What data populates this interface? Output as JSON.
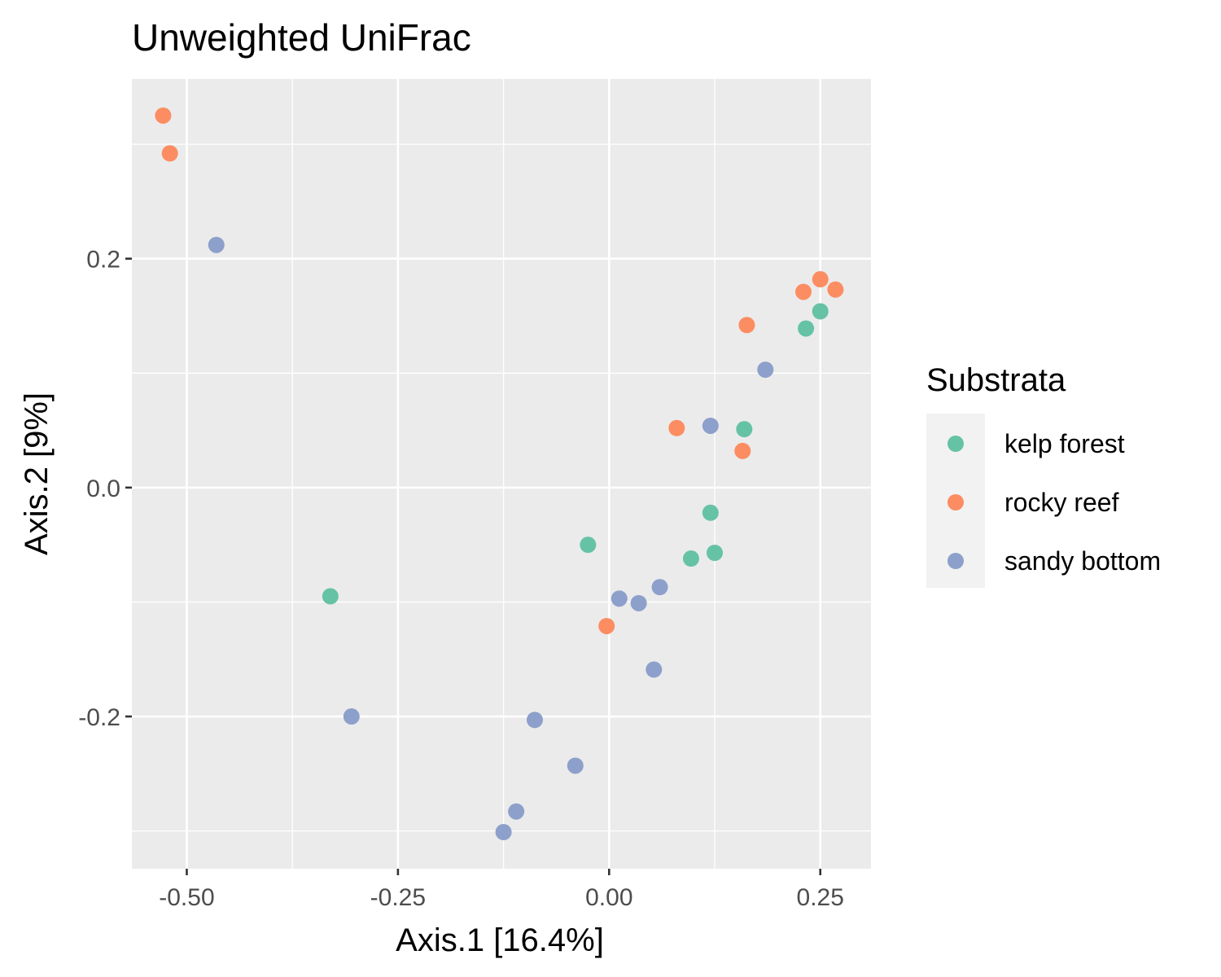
{
  "chart_data": {
    "type": "scatter",
    "title": "Unweighted UniFrac",
    "xlabel": "Axis.1   [16.4%]",
    "ylabel": "Axis.2   [9%]",
    "xlim": [
      -0.565,
      0.31
    ],
    "ylim": [
      -0.333,
      0.357
    ],
    "x_ticks": [
      -0.5,
      -0.25,
      0.0,
      0.25
    ],
    "x_tick_labels": [
      "-0.50",
      "-0.25",
      "0.00",
      "0.25"
    ],
    "y_ticks": [
      -0.2,
      0.0,
      0.2
    ],
    "y_tick_labels": [
      "-0.2",
      "0.0",
      "0.2"
    ],
    "grid": true,
    "legend": {
      "title": "Substrata",
      "position": "right"
    },
    "series": [
      {
        "name": "kelp forest",
        "color": "#66c2a5",
        "points": [
          {
            "x": -0.33,
            "y": -0.095
          },
          {
            "x": -0.025,
            "y": -0.05
          },
          {
            "x": 0.097,
            "y": -0.062
          },
          {
            "x": 0.12,
            "y": -0.022
          },
          {
            "x": 0.125,
            "y": -0.057
          },
          {
            "x": 0.16,
            "y": 0.051
          },
          {
            "x": 0.233,
            "y": 0.139
          },
          {
            "x": 0.25,
            "y": 0.154
          }
        ]
      },
      {
        "name": "rocky reef",
        "color": "#fc8d62",
        "points": [
          {
            "x": -0.528,
            "y": 0.325
          },
          {
            "x": -0.52,
            "y": 0.292
          },
          {
            "x": -0.003,
            "y": -0.121
          },
          {
            "x": 0.08,
            "y": 0.052
          },
          {
            "x": 0.158,
            "y": 0.032
          },
          {
            "x": 0.163,
            "y": 0.142
          },
          {
            "x": 0.23,
            "y": 0.171
          },
          {
            "x": 0.25,
            "y": 0.182
          },
          {
            "x": 0.268,
            "y": 0.173
          }
        ]
      },
      {
        "name": "sandy bottom",
        "color": "#8da0cb",
        "points": [
          {
            "x": -0.465,
            "y": 0.212
          },
          {
            "x": -0.305,
            "y": -0.2
          },
          {
            "x": -0.125,
            "y": -0.301
          },
          {
            "x": -0.11,
            "y": -0.283
          },
          {
            "x": -0.088,
            "y": -0.203
          },
          {
            "x": -0.04,
            "y": -0.243
          },
          {
            "x": 0.012,
            "y": -0.097
          },
          {
            "x": 0.035,
            "y": -0.101
          },
          {
            "x": 0.053,
            "y": -0.159
          },
          {
            "x": 0.06,
            "y": -0.087
          },
          {
            "x": 0.12,
            "y": 0.054
          },
          {
            "x": 0.185,
            "y": 0.103
          }
        ]
      }
    ]
  }
}
